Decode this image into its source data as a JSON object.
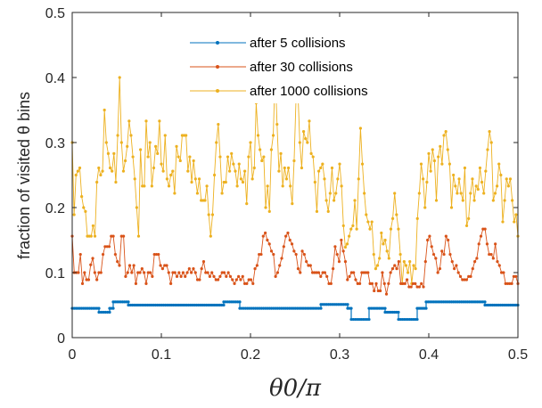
{
  "chart_data": {
    "type": "line",
    "xlabel": "θ0/π",
    "ylabel": "fraction of visited θ bins",
    "xlim": [
      0,
      0.5
    ],
    "ylim": [
      0,
      0.5
    ],
    "xticks": [
      "0",
      "0.1",
      "0.2",
      "0.3",
      "0.4",
      "0.5"
    ],
    "yticks": [
      "0",
      "0.1",
      "0.2",
      "0.3",
      "0.4",
      "0.5"
    ],
    "xtick_values": [
      0,
      0.1,
      0.2,
      0.3,
      0.4,
      0.5
    ],
    "ytick_values": [
      0,
      0.1,
      0.2,
      0.3,
      0.4,
      0.5
    ],
    "grid": false,
    "legend_position": "top-center",
    "series": [
      {
        "name": "after 5 collisions",
        "color": "#0072BD",
        "segments": [
          [
            0,
            0.045
          ],
          [
            0.03,
            0.045
          ],
          [
            0.03,
            0.039
          ],
          [
            0.042,
            0.039
          ],
          [
            0.042,
            0.045
          ],
          [
            0.046,
            0.045
          ],
          [
            0.046,
            0.055
          ],
          [
            0.063,
            0.055
          ],
          [
            0.063,
            0.05
          ],
          [
            0.17,
            0.05
          ],
          [
            0.17,
            0.055
          ],
          [
            0.188,
            0.055
          ],
          [
            0.188,
            0.045
          ],
          [
            0.279,
            0.045
          ],
          [
            0.279,
            0.051
          ],
          [
            0.309,
            0.051
          ],
          [
            0.309,
            0.045
          ],
          [
            0.313,
            0.045
          ],
          [
            0.313,
            0.028
          ],
          [
            0.333,
            0.028
          ],
          [
            0.333,
            0.045
          ],
          [
            0.351,
            0.045
          ],
          [
            0.351,
            0.039
          ],
          [
            0.366,
            0.039
          ],
          [
            0.366,
            0.028
          ],
          [
            0.387,
            0.028
          ],
          [
            0.387,
            0.045
          ],
          [
            0.397,
            0.045
          ],
          [
            0.397,
            0.055
          ],
          [
            0.463,
            0.055
          ],
          [
            0.463,
            0.05
          ],
          [
            0.5,
            0.05
          ]
        ]
      },
      {
        "name": "after 30 collisions",
        "color": "#D95319",
        "values": [
          0.156,
          0.1,
          0.1,
          0.1,
          0.128,
          0.083,
          0.1,
          0.089,
          0.089,
          0.112,
          0.122,
          0.1,
          0.089,
          0.1,
          0.1,
          0.128,
          0.14,
          0.14,
          0.14,
          0.156,
          0.156,
          0.128,
          0.117,
          0.111,
          0.156,
          0.156,
          0.094,
          0.1,
          0.111,
          0.1,
          0.111,
          0.083,
          0.1,
          0.1,
          0.106,
          0.1,
          0.083,
          0.1,
          0.1,
          0.094,
          0.128,
          0.128,
          0.128,
          0.111,
          0.106,
          0.111,
          0.111,
          0.1,
          0.083,
          0.1,
          0.1,
          0.094,
          0.1,
          0.094,
          0.1,
          0.094,
          0.1,
          0.106,
          0.1,
          0.106,
          0.1,
          0.089,
          0.089,
          0.106,
          0.117,
          0.1,
          0.1,
          0.094,
          0.1,
          0.094,
          0.089,
          0.089,
          0.094,
          0.1,
          0.1,
          0.094,
          0.1,
          0.094,
          0.089,
          0.083,
          0.089,
          0.094,
          0.089,
          0.094,
          0.083,
          0.083,
          0.089,
          0.089,
          0.083,
          0.106,
          0.111,
          0.128,
          0.128,
          0.156,
          0.161,
          0.15,
          0.144,
          0.133,
          0.128,
          0.094,
          0.1,
          0.111,
          0.122,
          0.14,
          0.156,
          0.161,
          0.15,
          0.144,
          0.133,
          0.128,
          0.106,
          0.1,
          0.133,
          0.128,
          0.117,
          0.111,
          0.111,
          0.1,
          0.1,
          0.1,
          0.1,
          0.094,
          0.1,
          0.1,
          0.094,
          0.083,
          0.083,
          0.106,
          0.14,
          0.128,
          0.117,
          0.15,
          0.133,
          0.117,
          0.089,
          0.094,
          0.1,
          0.1,
          0.089,
          0.083,
          0.083,
          0.1,
          0.1,
          0.1,
          0.1,
          0.083,
          0.083,
          0.072,
          0.083,
          0.072,
          0.072,
          0.1,
          0.083,
          0.067,
          0.083,
          0.1,
          0.106,
          0.111,
          0.106,
          0.117,
          0.083,
          0.083,
          0.083,
          0.089,
          0.078,
          0.078,
          0.083,
          0.083,
          0.078,
          0.078,
          0.083,
          0.078,
          0.117,
          0.15,
          0.156,
          0.14,
          0.128,
          0.122,
          0.1,
          0.106,
          0.133,
          0.128,
          0.156,
          0.15,
          0.128,
          0.117,
          0.106,
          0.111,
          0.1,
          0.094,
          0.089,
          0.089,
          0.089,
          0.094,
          0.094,
          0.106,
          0.117,
          0.122,
          0.144,
          0.156,
          0.167,
          0.167,
          0.144,
          0.128,
          0.128,
          0.122,
          0.144,
          0.117,
          0.111,
          0.1,
          0.1,
          0.083,
          0.083,
          0.083,
          0.083,
          0.094,
          0.094,
          0.083
        ]
      },
      {
        "name": "after 1000 collisions",
        "color": "#EDB120",
        "values": [
          0.3,
          0.189,
          0.25,
          0.256,
          0.261,
          0.217,
          0.2,
          0.194,
          0.156,
          0.156,
          0.156,
          0.172,
          0.156,
          0.239,
          0.261,
          0.25,
          0.256,
          0.35,
          0.3,
          0.283,
          0.261,
          0.256,
          0.283,
          0.239,
          0.311,
          0.4,
          0.3,
          0.256,
          0.272,
          0.294,
          0.333,
          0.311,
          0.278,
          0.244,
          0.2,
          0.156,
          0.289,
          0.233,
          0.233,
          0.333,
          0.278,
          0.3,
          0.233,
          0.261,
          0.294,
          0.283,
          0.333,
          0.267,
          0.256,
          0.311,
          0.244,
          0.233,
          0.25,
          0.256,
          0.222,
          0.294,
          0.278,
          0.272,
          0.311,
          0.311,
          0.311,
          0.256,
          0.278,
          0.239,
          0.272,
          0.244,
          0.222,
          0.244,
          0.211,
          0.211,
          0.211,
          0.233,
          0.189,
          0.156,
          0.189,
          0.25,
          0.3,
          0.328,
          0.278,
          0.222,
          0.239,
          0.239,
          0.278,
          0.256,
          0.283,
          0.267,
          0.256,
          0.233,
          0.267,
          0.244,
          0.239,
          0.256,
          0.206,
          0.278,
          0.3,
          0.244,
          0.261,
          0.361,
          0.311,
          0.289,
          0.272,
          0.278,
          0.2,
          0.233,
          0.194,
          0.289,
          0.311,
          0.411,
          0.328,
          0.256,
          0.283,
          0.233,
          0.261,
          0.244,
          0.261,
          0.233,
          0.206,
          0.272,
          0.367,
          0.378,
          0.3,
          0.261,
          0.317,
          0.306,
          0.3,
          0.333,
          0.283,
          0.278,
          0.239,
          0.194,
          0.256,
          0.261,
          0.267,
          0.244,
          0.211,
          0.194,
          0.222,
          0.261,
          0.211,
          0.222,
          0.244,
          0.267,
          0.233,
          0.172,
          0.139,
          0.144,
          0.156,
          0.167,
          0.172,
          0.211,
          0.167,
          0.244,
          0.322,
          0.267,
          0.222,
          0.189,
          0.178,
          0.167,
          0.178,
          0.128,
          0.106,
          0.111,
          0.122,
          0.161,
          0.144,
          0.15,
          0.133,
          0.122,
          0.167,
          0.183,
          0.222,
          0.189,
          0.167,
          0.128,
          0.083,
          0.117,
          0.111,
          0.1,
          0.117,
          0.083,
          0.111,
          0.106,
          0.183,
          0.222,
          0.267,
          0.244,
          0.2,
          0.239,
          0.283,
          0.256,
          0.289,
          0.272,
          0.211,
          0.278,
          0.294,
          0.267,
          0.311,
          0.317,
          0.289,
          0.267,
          0.2,
          0.25,
          0.233,
          0.222,
          0.244,
          0.222,
          0.211,
          0.261,
          0.172,
          0.183,
          0.222,
          0.244,
          0.211,
          0.233,
          0.228,
          0.261,
          0.239,
          0.222,
          0.256,
          0.289,
          0.317,
          0.3,
          0.211,
          0.222,
          0.233,
          0.267,
          0.25,
          0.178,
          0.211,
          0.244,
          0.233,
          0.244,
          0.211,
          0.178,
          0.189,
          0.156
        ]
      }
    ]
  }
}
